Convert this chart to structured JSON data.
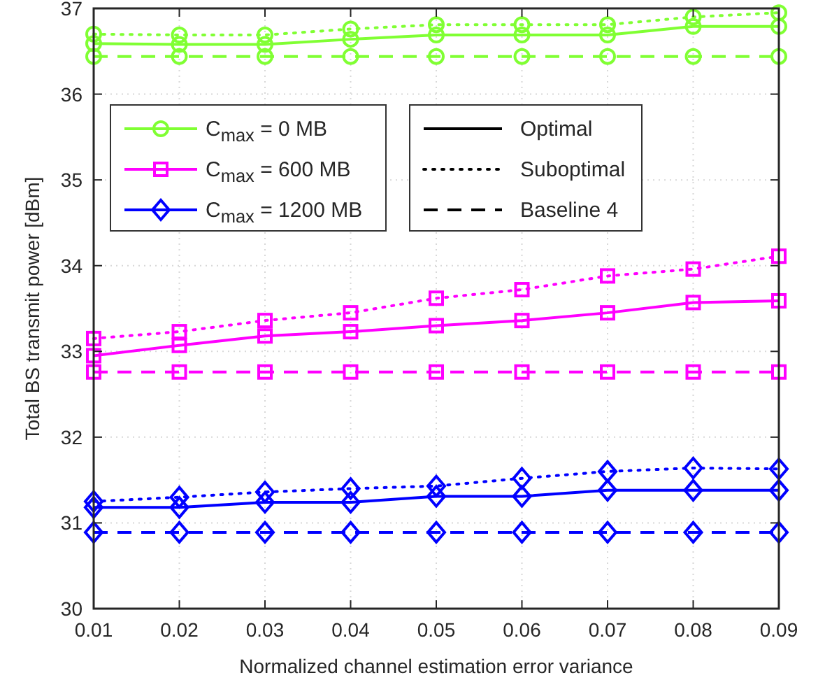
{
  "chart_data": {
    "type": "line",
    "xlabel": "Normalized channel estimation error variance",
    "ylabel": "Total BS transmit power [dBm]",
    "x": [
      0.01,
      0.02,
      0.03,
      0.04,
      0.05,
      0.06,
      0.07,
      0.08,
      0.09
    ],
    "xlim": [
      0.01,
      0.09
    ],
    "xticks": [
      0.01,
      0.02,
      0.03,
      0.04,
      0.05,
      0.06,
      0.07,
      0.08,
      0.09
    ],
    "ylim": [
      30,
      37
    ],
    "yticks": [
      30,
      31,
      32,
      33,
      34,
      35,
      36,
      37
    ],
    "grid": true,
    "legend": "top left",
    "annotations": [
      "Optimal",
      "Suboptimal",
      "Baseline 4"
    ],
    "series": [
      {
        "name": "C$_{max}$ = 0 MB",
        "color": "#80ff33",
        "marker": "circle",
        "line_style": "solid",
        "values": [
          36.59,
          36.58,
          36.58,
          36.64,
          36.69,
          36.69,
          36.69,
          36.79,
          36.79
        ]
      },
      {
        "color": "#80ff33",
        "marker": "circle",
        "line_style": "dotted",
        "values": [
          36.7,
          36.69,
          36.69,
          36.76,
          36.81,
          36.81,
          36.81,
          36.9,
          36.95
        ]
      },
      {
        "color": "#80ff33",
        "marker": "circle",
        "line_style": "dashed",
        "values": [
          36.44,
          36.44,
          36.44,
          36.44,
          36.44,
          36.44,
          36.44,
          36.44,
          36.44
        ]
      },
      {
        "name": "C$_{max}$ = 600 MB",
        "color": "#ff00ff",
        "marker": "square",
        "line_style": "solid",
        "values": [
          32.95,
          33.07,
          33.18,
          33.23,
          33.3,
          33.36,
          33.45,
          33.57,
          33.59
        ]
      },
      {
        "color": "#ff00ff",
        "marker": "square",
        "line_style": "dotted",
        "values": [
          33.15,
          33.23,
          33.36,
          33.45,
          33.62,
          33.72,
          33.88,
          33.96,
          34.11
        ]
      },
      {
        "color": "#ff00ff",
        "marker": "square",
        "line_style": "dashed",
        "values": [
          32.76,
          32.76,
          32.76,
          32.76,
          32.76,
          32.76,
          32.76,
          32.76,
          32.76
        ]
      },
      {
        "name": "C$_{max}$ = 1200 MB",
        "color": "#0000ff",
        "marker": "diamond",
        "line_style": "solid",
        "values": [
          31.18,
          31.18,
          31.24,
          31.24,
          31.31,
          31.31,
          31.38,
          31.38,
          31.38
        ]
      },
      {
        "color": "#0000ff",
        "marker": "diamond",
        "line_style": "dotted",
        "values": [
          31.25,
          31.3,
          31.36,
          31.4,
          31.43,
          31.52,
          31.6,
          31.64,
          31.63
        ]
      },
      {
        "color": "#0000ff",
        "marker": "diamond",
        "line_style": "dashed",
        "values": [
          30.89,
          30.89,
          30.89,
          30.89,
          30.89,
          30.89,
          30.89,
          30.89,
          30.89
        ]
      }
    ]
  }
}
